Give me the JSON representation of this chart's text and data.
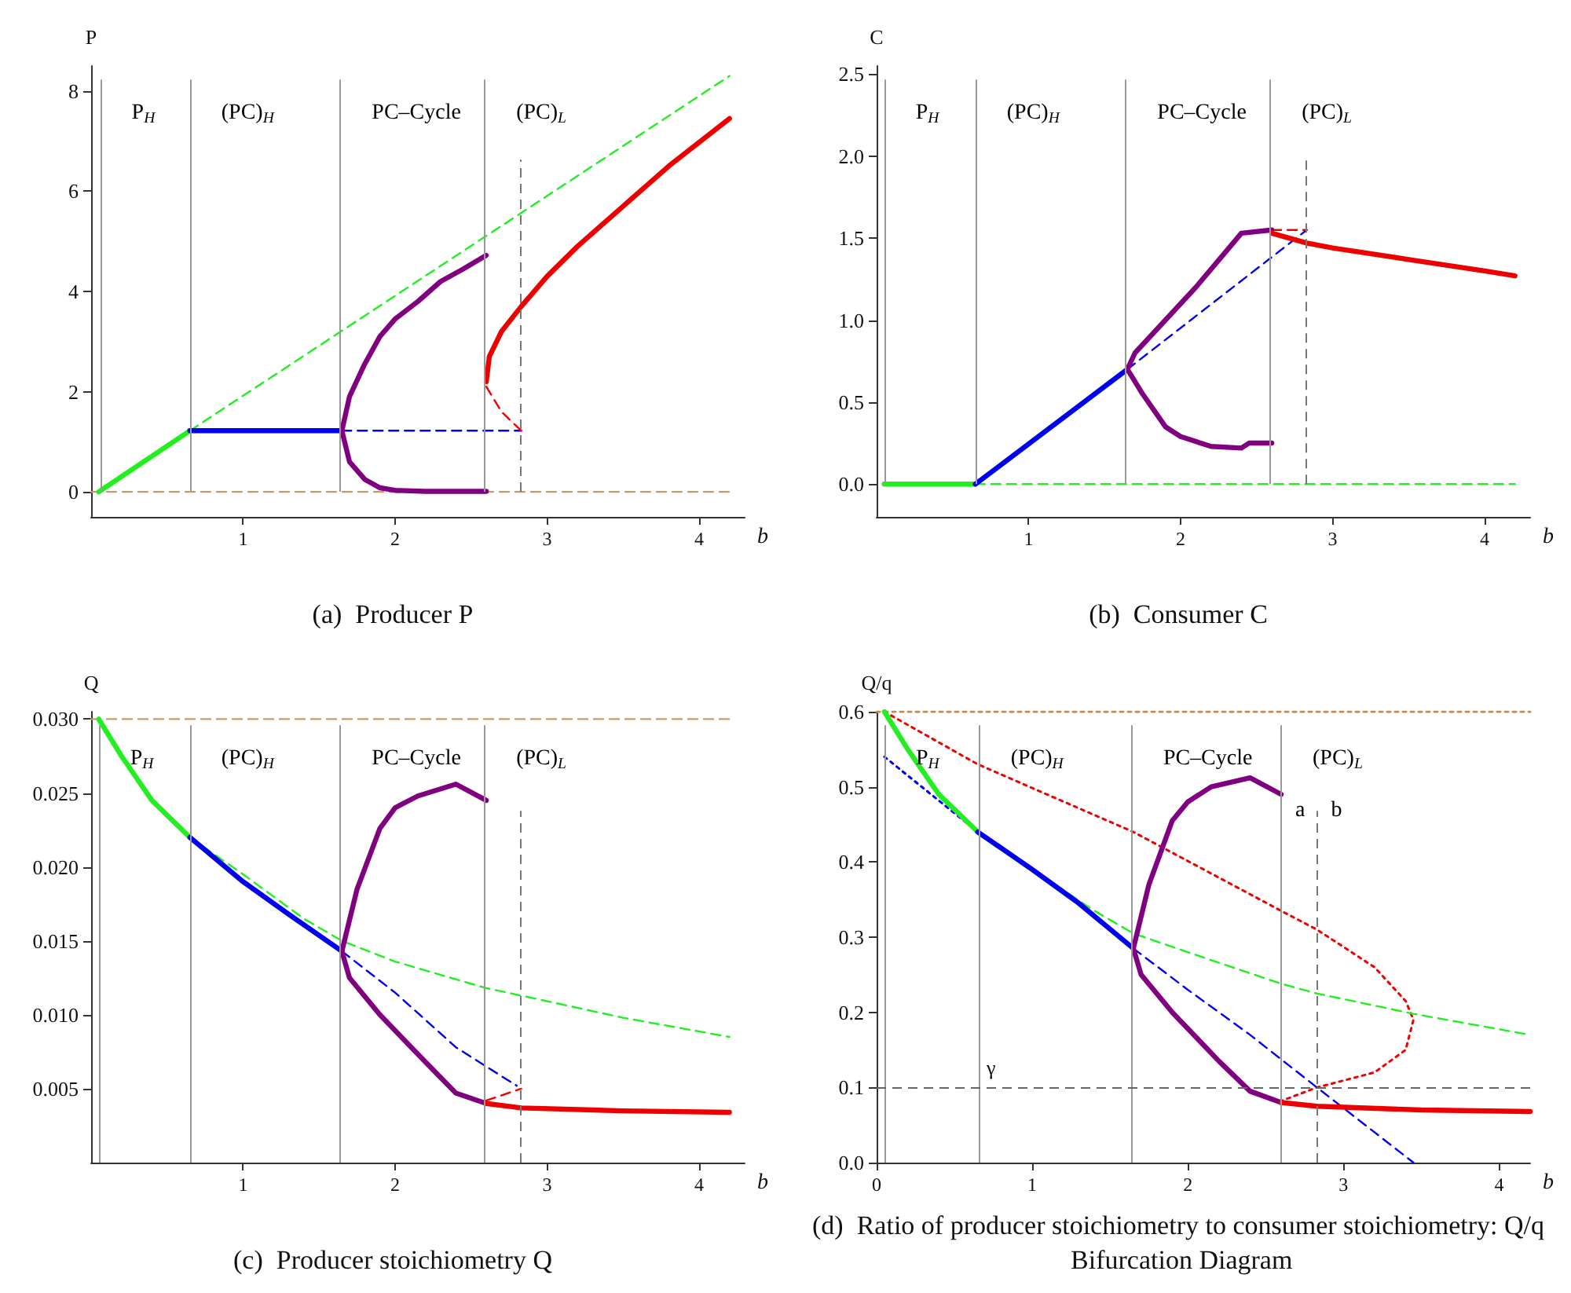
{
  "chart_data": [
    {
      "type": "line",
      "title": "(a)  Producer P",
      "xlabel": "b",
      "ylabel": "P",
      "marker": "none",
      "xlim": [
        0,
        4.3
      ],
      "ylim": [
        -0.5,
        8.5
      ],
      "xticks": [
        1,
        2,
        3,
        4
      ],
      "yticks": [
        0,
        2,
        4,
        6,
        8
      ],
      "series": [
        {
          "color": "#cc9966",
          "line_style": "dashed",
          "x": [
            0,
            4.2
          ],
          "values": [
            0,
            0
          ]
        },
        {
          "color": "#22ee22",
          "line_style": "dashed",
          "x": [
            0.65,
            4.2
          ],
          "values": [
            1.22,
            8.3
          ]
        },
        {
          "color": "#22ee22",
          "line_style": "solid",
          "x": [
            0.05,
            0.65
          ],
          "values": [
            0,
            1.22
          ]
        },
        {
          "color": "#0000ee",
          "line_style": "dashed",
          "x": [
            1.65,
            2.83
          ],
          "values": [
            1.22,
            1.22
          ]
        },
        {
          "color": "#0000ee",
          "line_style": "solid",
          "x": [
            0.65,
            1.65
          ],
          "values": [
            1.22,
            1.22
          ]
        },
        {
          "color": "#800080",
          "line_style": "solid",
          "x": [
            1.65,
            1.7,
            1.8,
            1.9,
            2.0,
            2.15,
            2.3,
            2.45,
            2.6
          ],
          "values": [
            1.22,
            1.9,
            2.55,
            3.1,
            3.45,
            3.8,
            4.2,
            4.45,
            4.72
          ]
        },
        {
          "color": "#800080",
          "line_style": "solid",
          "x": [
            1.65,
            1.7,
            1.8,
            1.9,
            2.0,
            2.2,
            2.6
          ],
          "values": [
            1.22,
            0.6,
            0.25,
            0.08,
            0.03,
            0.01,
            0.01
          ]
        },
        {
          "color": "#ee0000",
          "line_style": "dashed",
          "x": [
            2.6,
            2.7,
            2.83
          ],
          "values": [
            2.1,
            1.6,
            1.22
          ]
        },
        {
          "color": "#ee0000",
          "line_style": "solid",
          "x": [
            2.6,
            2.62,
            2.7,
            2.83,
            3.0,
            3.2,
            3.5,
            3.8,
            4.2
          ],
          "values": [
            2.2,
            2.7,
            3.2,
            3.7,
            4.3,
            4.9,
            5.7,
            6.5,
            7.45
          ]
        }
      ],
      "ref_lines": [
        {
          "axis": "x",
          "value": 0.06,
          "color": "#999999",
          "line_style": "solid"
        },
        {
          "axis": "x",
          "value": 0.65,
          "color": "#999999",
          "line_style": "solid"
        },
        {
          "axis": "x",
          "value": 1.64,
          "color": "#999999",
          "line_style": "solid"
        },
        {
          "axis": "x",
          "value": 2.59,
          "color": "#999999",
          "line_style": "solid"
        },
        {
          "axis": "x",
          "value": 2.82,
          "color": "#777777",
          "line_style": "dashed"
        }
      ],
      "annotations": [
        "P$_{H}$",
        "(PC)$_{H}$",
        "PC–Cycle",
        "(PC)$_{L}$"
      ]
    },
    {
      "type": "line",
      "title": "(b)  Consumer C",
      "xlabel": "b",
      "ylabel": "C",
      "marker": "none",
      "xlim": [
        0,
        4.3
      ],
      "ylim": [
        -0.2,
        2.55
      ],
      "xticks": [
        1,
        2,
        3,
        4
      ],
      "yticks": [
        {
          "value": 0,
          "label": "0.0"
        },
        0.5,
        {
          "value": 1,
          "label": "1.0"
        },
        1.5,
        {
          "value": 2,
          "label": "2.0"
        },
        2.5
      ],
      "series": [
        {
          "color": "#22ee22",
          "line_style": "dashed",
          "x": [
            0.65,
            4.2
          ],
          "values": [
            0,
            0
          ]
        },
        {
          "color": "#22ee22",
          "line_style": "solid",
          "x": [
            0.05,
            0.65
          ],
          "values": [
            0,
            0
          ]
        },
        {
          "color": "#0000ee",
          "line_style": "dashed",
          "x": [
            1.65,
            2.83
          ],
          "values": [
            0.7,
            1.55
          ]
        },
        {
          "color": "#0000ee",
          "line_style": "solid",
          "x": [
            0.65,
            1.65
          ],
          "values": [
            0,
            0.7
          ]
        },
        {
          "color": "#800080",
          "line_style": "solid",
          "x": [
            1.65,
            1.7,
            1.9,
            2.1,
            2.3,
            2.4,
            2.6
          ],
          "values": [
            0.7,
            0.8,
            1.0,
            1.2,
            1.42,
            1.53,
            1.55
          ]
        },
        {
          "color": "#800080",
          "line_style": "solid",
          "x": [
            1.65,
            1.75,
            1.9,
            2.0,
            2.2,
            2.4,
            2.45,
            2.6
          ],
          "values": [
            0.7,
            0.55,
            0.35,
            0.29,
            0.23,
            0.22,
            0.25,
            0.25
          ]
        },
        {
          "color": "#ee0000",
          "line_style": "dashed",
          "x": [
            2.6,
            2.83
          ],
          "values": [
            1.55,
            1.55
          ]
        },
        {
          "color": "#ee0000",
          "line_style": "solid",
          "x": [
            2.6,
            2.83,
            3.0,
            3.5,
            4.0,
            4.2
          ],
          "values": [
            1.53,
            1.47,
            1.44,
            1.37,
            1.3,
            1.27
          ]
        }
      ],
      "ref_lines": [
        {
          "axis": "x",
          "value": 0.05,
          "color": "#999999",
          "line_style": "solid"
        },
        {
          "axis": "x",
          "value": 0.65,
          "color": "#999999",
          "line_style": "solid"
        },
        {
          "axis": "x",
          "value": 1.64,
          "color": "#999999",
          "line_style": "solid"
        },
        {
          "axis": "x",
          "value": 2.59,
          "color": "#999999",
          "line_style": "solid"
        },
        {
          "axis": "x",
          "value": 2.82,
          "color": "#777777",
          "line_style": "dashed"
        }
      ],
      "annotations": [
        "P$_{H}$",
        "(PC)$_{H}$",
        "PC–Cycle",
        "(PC)$_{L}$"
      ]
    },
    {
      "type": "line",
      "title": "(c)  Producer stoichiometry Q",
      "xlabel": "b",
      "ylabel": "Q",
      "marker": "none",
      "xlim": [
        0,
        4.3
      ],
      "ylim": [
        0,
        0.0305
      ],
      "xticks": [
        1,
        2,
        3,
        4
      ],
      "yticks": [
        0.005,
        {
          "value": 0.01,
          "label": "0.010"
        },
        0.015,
        {
          "value": 0.02,
          "label": "0.020"
        },
        0.025,
        {
          "value": 0.03,
          "label": "0.030"
        }
      ],
      "series": [
        {
          "color": "#cc9966",
          "line_style": "dashed",
          "x": [
            0,
            4.2
          ],
          "values": [
            0.03,
            0.03
          ]
        },
        {
          "color": "#22ee22",
          "line_style": "dashed",
          "x": [
            0.65,
            1.0,
            1.4,
            1.65,
            2.0,
            2.6,
            2.83,
            3.5,
            4.2
          ],
          "values": [
            0.022,
            0.0195,
            0.0165,
            0.015,
            0.0136,
            0.0118,
            0.0113,
            0.0098,
            0.0085
          ]
        },
        {
          "color": "#22ee22",
          "line_style": "solid",
          "x": [
            0.05,
            0.2,
            0.4,
            0.65
          ],
          "values": [
            0.03,
            0.0275,
            0.0245,
            0.022
          ]
        },
        {
          "color": "#0000ee",
          "line_style": "dashed",
          "x": [
            1.65,
            2.0,
            2.4,
            2.8
          ],
          "values": [
            0.0143,
            0.0115,
            0.0078,
            0.0052
          ]
        },
        {
          "color": "#0000ee",
          "line_style": "solid",
          "x": [
            0.65,
            1.0,
            1.3,
            1.65
          ],
          "values": [
            0.022,
            0.019,
            0.0168,
            0.0143
          ]
        },
        {
          "color": "#800080",
          "line_style": "solid",
          "x": [
            1.65,
            1.75,
            1.9,
            2.0,
            2.15,
            2.4,
            2.6
          ],
          "values": [
            0.0143,
            0.0185,
            0.0226,
            0.024,
            0.0248,
            0.0256,
            0.0245
          ]
        },
        {
          "color": "#800080",
          "line_style": "solid",
          "x": [
            1.65,
            1.7,
            1.9,
            2.2,
            2.4,
            2.6
          ],
          "values": [
            0.0143,
            0.0125,
            0.01,
            0.0068,
            0.0047,
            0.004
          ]
        },
        {
          "color": "#ee0000",
          "line_style": "dashed",
          "x": [
            2.6,
            2.83
          ],
          "values": [
            0.0042,
            0.005
          ]
        },
        {
          "color": "#ee0000",
          "line_style": "solid",
          "x": [
            2.6,
            2.83,
            3.5,
            4.2
          ],
          "values": [
            0.004,
            0.0037,
            0.0035,
            0.0034
          ]
        }
      ],
      "ref_lines": [
        {
          "axis": "x",
          "value": 0.05,
          "color": "#999999",
          "line_style": "solid"
        },
        {
          "axis": "x",
          "value": 0.65,
          "color": "#999999",
          "line_style": "solid"
        },
        {
          "axis": "x",
          "value": 1.64,
          "color": "#999999",
          "line_style": "solid"
        },
        {
          "axis": "x",
          "value": 2.59,
          "color": "#999999",
          "line_style": "solid"
        },
        {
          "axis": "x",
          "value": 2.82,
          "color": "#777777",
          "line_style": "dashed"
        }
      ],
      "annotations": [
        "P$_{H}$",
        "(PC)$_{H}$",
        "PC–Cycle",
        "(PC)$_{L}$"
      ]
    },
    {
      "type": "line",
      "title": "(d)  Ratio of producer stoichiometry to consumer stoichiometry: Q/q Bifurcation Diagram",
      "xlabel": "b",
      "ylabel": "Q/q",
      "marker": "none",
      "xlim": [
        0,
        4.2
      ],
      "ylim": [
        0,
        0.6
      ],
      "xticks": [
        0,
        1,
        2,
        3,
        4
      ],
      "yticks": [
        {
          "value": 0,
          "label": "0.0"
        },
        0.1,
        0.2,
        0.3,
        0.4,
        0.5,
        0.6
      ],
      "series": [
        {
          "color": "#cc8844",
          "line_style": "dotted",
          "x": [
            0,
            4.2
          ],
          "values": [
            0.6,
            0.6
          ]
        },
        {
          "color": "#ee0000",
          "line_style": "dotted",
          "x": [
            0.05,
            0.65,
            1.65,
            2.6,
            2.83,
            3.2,
            3.4,
            3.45,
            3.4,
            3.2,
            2.83,
            2.6
          ],
          "values": [
            0.6,
            0.53,
            0.44,
            0.335,
            0.31,
            0.26,
            0.215,
            0.19,
            0.15,
            0.12,
            0.1,
            0.082
          ]
        },
        {
          "color": "#0000ee",
          "line_style": "dotted",
          "x": [
            0.05,
            0.65
          ],
          "values": [
            0.54,
            0.44
          ]
        },
        {
          "color": "#22ee22",
          "line_style": "dashed",
          "x": [
            0.65,
            1.0,
            1.4,
            1.65,
            2.0,
            2.6,
            2.83,
            3.45,
            4.2
          ],
          "values": [
            0.44,
            0.39,
            0.335,
            0.305,
            0.28,
            0.238,
            0.225,
            0.198,
            0.17
          ]
        },
        {
          "color": "#0000ee",
          "line_style": "dashed",
          "x": [
            1.65,
            2.0,
            2.4,
            2.83,
            3.45
          ],
          "values": [
            0.285,
            0.23,
            0.17,
            0.1,
            0.0
          ]
        },
        {
          "color": "#22ee22",
          "line_style": "solid",
          "x": [
            0.05,
            0.2,
            0.4,
            0.65
          ],
          "values": [
            0.6,
            0.55,
            0.49,
            0.44
          ]
        },
        {
          "color": "#0000ee",
          "line_style": "solid",
          "x": [
            0.65,
            1.0,
            1.3,
            1.65
          ],
          "values": [
            0.44,
            0.39,
            0.345,
            0.285
          ]
        },
        {
          "color": "#800080",
          "line_style": "solid",
          "x": [
            1.65,
            1.75,
            1.9,
            2.0,
            2.15,
            2.4,
            2.6
          ],
          "values": [
            0.285,
            0.37,
            0.455,
            0.48,
            0.5,
            0.512,
            0.49
          ]
        },
        {
          "color": "#800080",
          "line_style": "solid",
          "x": [
            1.65,
            1.7,
            1.9,
            2.2,
            2.4,
            2.6
          ],
          "values": [
            0.285,
            0.25,
            0.2,
            0.135,
            0.095,
            0.08
          ]
        },
        {
          "color": "#ee0000",
          "line_style": "solid",
          "x": [
            2.6,
            2.83,
            3.5,
            4.2
          ],
          "values": [
            0.08,
            0.075,
            0.07,
            0.068
          ]
        }
      ],
      "ref_lines": [
        {
          "axis": "x",
          "value": 0.05,
          "color": "#999999",
          "line_style": "solid"
        },
        {
          "axis": "x",
          "value": 0.66,
          "color": "#999999",
          "line_style": "solid"
        },
        {
          "axis": "x",
          "value": 1.64,
          "color": "#999999",
          "line_style": "solid"
        },
        {
          "axis": "x",
          "value": 2.6,
          "label": "a",
          "color": "#999999",
          "line_style": "solid"
        },
        {
          "axis": "x",
          "value": 2.83,
          "label": "b",
          "color": "#777777",
          "line_style": "dashed"
        },
        {
          "axis": "y",
          "value": 0.1,
          "label": "γ",
          "color": "#666666",
          "line_style": "dashed"
        }
      ],
      "annotations": [
        "P$_{H}$",
        "(PC)$_{H}$",
        "PC–Cycle",
        "(PC)$_{L}$"
      ]
    }
  ]
}
